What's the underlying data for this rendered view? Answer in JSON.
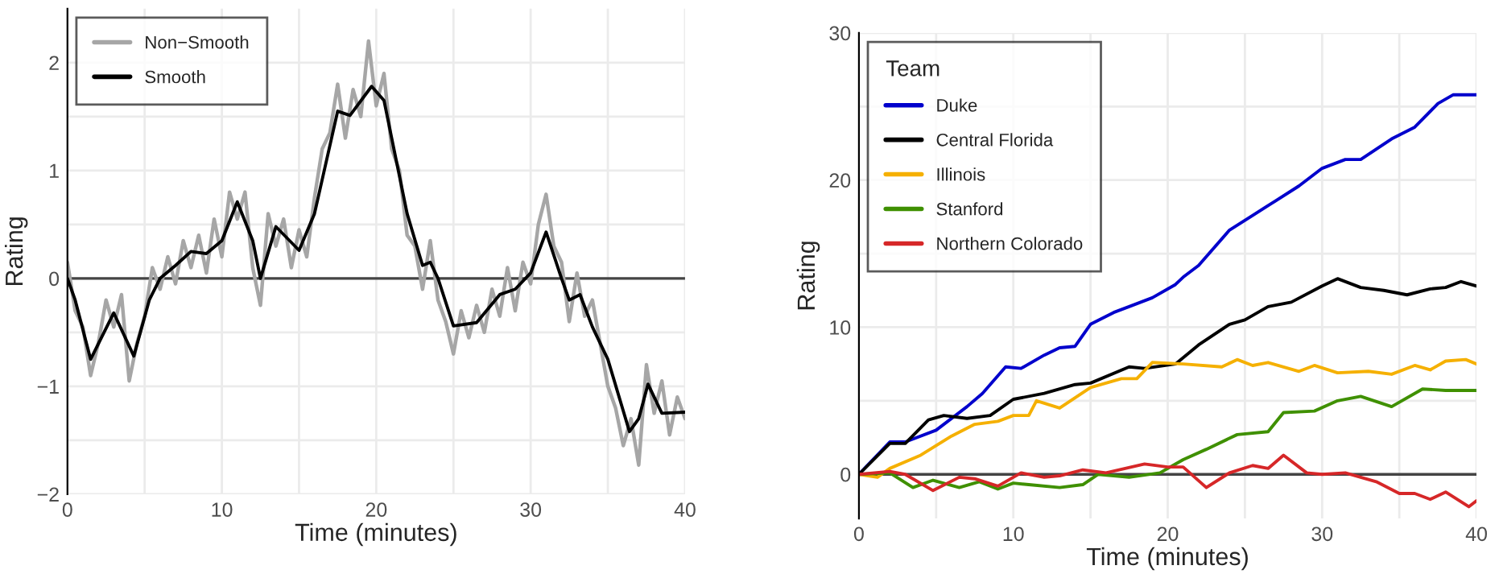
{
  "chart_data": [
    {
      "type": "line",
      "xlabel": "Time (minutes)",
      "ylabel": "Rating",
      "xlim": [
        0,
        40
      ],
      "ylim": [
        -2,
        2.5
      ],
      "xticks": [
        0,
        {
          "value": 5,
          "label": null
        },
        10,
        {
          "value": 15,
          "label": null
        },
        20,
        {
          "value": 25,
          "label": null
        },
        30,
        {
          "value": 35,
          "label": null
        },
        40
      ],
      "yticks": [
        {
          "value": -2,
          "label": "−2"
        },
        {
          "value": -1.5,
          "label": null
        },
        {
          "value": -1,
          "label": "−1"
        },
        {
          "value": -0.5,
          "label": null
        },
        0,
        {
          "value": 0.5,
          "label": null
        },
        1,
        {
          "value": 1.5,
          "label": null
        },
        2
      ],
      "grid": true,
      "legend": "top left",
      "line_style": "solid",
      "marker": "none",
      "ref_lines": [
        {
          "axis": "y",
          "value": 0,
          "color": "#444444"
        }
      ],
      "series": [
        {
          "name": "Non−Smooth",
          "color": "#a6a6a6",
          "x": [
            0,
            0.5,
            1,
            1.5,
            2,
            2.5,
            3,
            3.5,
            4,
            4.5,
            5,
            5.5,
            6,
            6.5,
            7,
            7.5,
            8,
            8.5,
            9,
            9.5,
            10,
            10.5,
            11,
            11.5,
            12,
            12.5,
            13,
            13.5,
            14,
            14.5,
            15,
            15.5,
            16,
            16.5,
            17,
            17.5,
            18,
            18.5,
            19,
            19.5,
            20,
            20.5,
            21,
            21.5,
            22,
            22.5,
            23,
            23.5,
            24,
            24.5,
            25,
            25.5,
            26,
            26.5,
            27,
            27.5,
            28,
            28.5,
            29,
            29.5,
            30,
            30.5,
            31,
            31.5,
            32,
            32.5,
            33,
            33.5,
            34,
            34.5,
            35,
            35.5,
            36,
            36.5,
            37,
            37.5,
            38,
            38.5,
            39,
            39.5,
            40
          ],
          "values": [
            0.15,
            -0.3,
            -0.45,
            -0.9,
            -0.6,
            -0.2,
            -0.45,
            -0.15,
            -0.95,
            -0.6,
            -0.35,
            0.1,
            -0.1,
            0.2,
            -0.05,
            0.35,
            0.1,
            0.4,
            0.05,
            0.55,
            0.2,
            0.8,
            0.55,
            0.8,
            0.1,
            -0.25,
            0.6,
            0.3,
            0.55,
            0.1,
            0.45,
            0.2,
            0.75,
            1.2,
            1.35,
            1.8,
            1.3,
            1.75,
            1.5,
            2.2,
            1.6,
            1.9,
            1.2,
            1.0,
            0.4,
            0.3,
            -0.1,
            0.35,
            -0.2,
            -0.4,
            -0.7,
            -0.3,
            -0.55,
            -0.25,
            -0.5,
            -0.1,
            -0.35,
            0.1,
            -0.3,
            0.15,
            -0.05,
            0.5,
            0.78,
            0.3,
            0.15,
            -0.4,
            0.05,
            -0.35,
            -0.2,
            -0.6,
            -1.0,
            -1.2,
            -1.55,
            -1.3,
            -1.73,
            -0.8,
            -1.25,
            -0.95,
            -1.45,
            -1.1,
            -1.3
          ]
        },
        {
          "name": "Smooth",
          "color": "#000000",
          "x": [
            0,
            0.5,
            1.5,
            3,
            4.3,
            5.3,
            6,
            7,
            8,
            9,
            10,
            11,
            12,
            12.5,
            13.5,
            15,
            16,
            17.5,
            18.3,
            19.7,
            20.5,
            22,
            23,
            23.5,
            24,
            25,
            26.5,
            28,
            29,
            30,
            31,
            32,
            32.5,
            33.2,
            34,
            35,
            36.4,
            37,
            37.6,
            38.5,
            40
          ],
          "values": [
            0,
            -0.2,
            -0.75,
            -0.32,
            -0.72,
            -0.2,
            0,
            0.12,
            0.25,
            0.23,
            0.35,
            0.71,
            0.35,
            0,
            0.48,
            0.26,
            0.6,
            1.55,
            1.51,
            1.78,
            1.65,
            0.6,
            0.12,
            0.15,
            0,
            -0.44,
            -0.41,
            -0.15,
            -0.1,
            0.05,
            0.43,
            0,
            -0.2,
            -0.15,
            -0.45,
            -0.75,
            -1.42,
            -1.3,
            -0.98,
            -1.25,
            -1.24
          ]
        }
      ]
    },
    {
      "type": "line",
      "xlabel": "Time (minutes)",
      "ylabel": "Rating",
      "legend_title": "Team",
      "xlim": [
        0,
        40
      ],
      "ylim": [
        -3,
        30
      ],
      "xticks": [
        0,
        {
          "value": 5,
          "label": null
        },
        10,
        {
          "value": 15,
          "label": null
        },
        20,
        {
          "value": 25,
          "label": null
        },
        30,
        {
          "value": 35,
          "label": null
        },
        40
      ],
      "yticks": [
        0,
        {
          "value": 5,
          "label": null
        },
        10,
        {
          "value": 15,
          "label": null
        },
        20,
        {
          "value": 25,
          "label": null
        },
        30
      ],
      "grid": true,
      "legend": "top left",
      "line_style": "solid",
      "marker": "none",
      "ref_lines": [
        {
          "axis": "y",
          "value": 0,
          "color": "#444444"
        }
      ],
      "series": [
        {
          "name": "Duke",
          "color": "#0000cc",
          "x": [
            0,
            2,
            3,
            5,
            7,
            8,
            9.5,
            10.5,
            12,
            13,
            14,
            15,
            16.5,
            17.5,
            19,
            20.5,
            21,
            22,
            24,
            25.5,
            27,
            28.5,
            30,
            31.5,
            32.5,
            34.5,
            36,
            37.5,
            38.5,
            40
          ],
          "values": [
            0,
            2.2,
            2.2,
            3.0,
            4.6,
            5.5,
            7.3,
            7.2,
            8.1,
            8.6,
            8.7,
            10.2,
            11,
            11.4,
            12,
            12.9,
            13.4,
            14.2,
            16.6,
            17.6,
            18.6,
            19.6,
            20.8,
            21.4,
            21.4,
            22.8,
            23.6,
            25.2,
            25.8,
            25.8
          ]
        },
        {
          "name": "Central Florida",
          "color": "#000000",
          "x": [
            0,
            2,
            3,
            4.5,
            5.5,
            7,
            8.5,
            10,
            12,
            14,
            15,
            17.5,
            18.5,
            20.5,
            22,
            24,
            25,
            26.5,
            28,
            30,
            31,
            32.5,
            34,
            35.5,
            37,
            38,
            39,
            40
          ],
          "values": [
            0,
            2.1,
            2.1,
            3.7,
            4.0,
            3.8,
            4.0,
            5.1,
            5.5,
            6.1,
            6.2,
            7.3,
            7.2,
            7.5,
            8.8,
            10.2,
            10.5,
            11.4,
            11.7,
            12.8,
            13.3,
            12.7,
            12.5,
            12.2,
            12.6,
            12.7,
            13.1,
            12.8
          ]
        },
        {
          "name": "Illinois",
          "color": "#f5b000",
          "x": [
            0,
            1.2,
            2,
            4,
            6,
            7.5,
            9,
            10,
            11,
            11.5,
            13,
            15,
            17,
            18,
            19,
            21,
            23.5,
            24.5,
            25.5,
            26.5,
            28.5,
            29.5,
            31,
            33,
            34.5,
            36,
            37,
            38,
            39.3,
            40
          ],
          "values": [
            0,
            -0.2,
            0.4,
            1.3,
            2.6,
            3.4,
            3.6,
            4.0,
            4.0,
            5.0,
            4.5,
            5.9,
            6.5,
            6.5,
            7.6,
            7.5,
            7.3,
            7.8,
            7.4,
            7.6,
            7.0,
            7.4,
            6.9,
            7.0,
            6.8,
            7.4,
            7.1,
            7.7,
            7.8,
            7.5
          ]
        },
        {
          "name": "Stanford",
          "color": "#3f9000",
          "x": [
            0,
            2,
            3.5,
            4.8,
            6.5,
            7.8,
            9,
            10,
            11,
            13,
            14.5,
            15.5,
            17.5,
            19.5,
            21,
            22.5,
            24.5,
            26.5,
            27.5,
            29.5,
            31,
            32.5,
            34.5,
            36.5,
            38,
            40
          ],
          "values": [
            0,
            0.1,
            -0.9,
            -0.4,
            -0.9,
            -0.5,
            -1.0,
            -0.6,
            -0.7,
            -0.9,
            -0.7,
            0,
            -0.2,
            0.1,
            1.0,
            1.7,
            2.7,
            2.9,
            4.2,
            4.3,
            5.0,
            5.3,
            4.6,
            5.8,
            5.7,
            5.7
          ]
        },
        {
          "name": "Northern Colorado",
          "color": "#d62728",
          "x": [
            0,
            2,
            3,
            4.8,
            6.5,
            7.5,
            9,
            10.5,
            12,
            13,
            14.5,
            16,
            18.5,
            20,
            21,
            22.5,
            24,
            25.5,
            26.5,
            27.5,
            29,
            30,
            31.5,
            33.5,
            35,
            36,
            37,
            38,
            39.5,
            40
          ],
          "values": [
            0,
            0.2,
            0.0,
            -1.1,
            -0.2,
            -0.3,
            -0.8,
            0.1,
            -0.2,
            -0.1,
            0.3,
            0.1,
            0.7,
            0.5,
            0.5,
            -0.9,
            0.1,
            0.6,
            0.4,
            1.3,
            0.1,
            0.0,
            0.1,
            -0.5,
            -1.3,
            -1.3,
            -1.7,
            -1.2,
            -2.2,
            -1.8
          ]
        }
      ]
    }
  ]
}
